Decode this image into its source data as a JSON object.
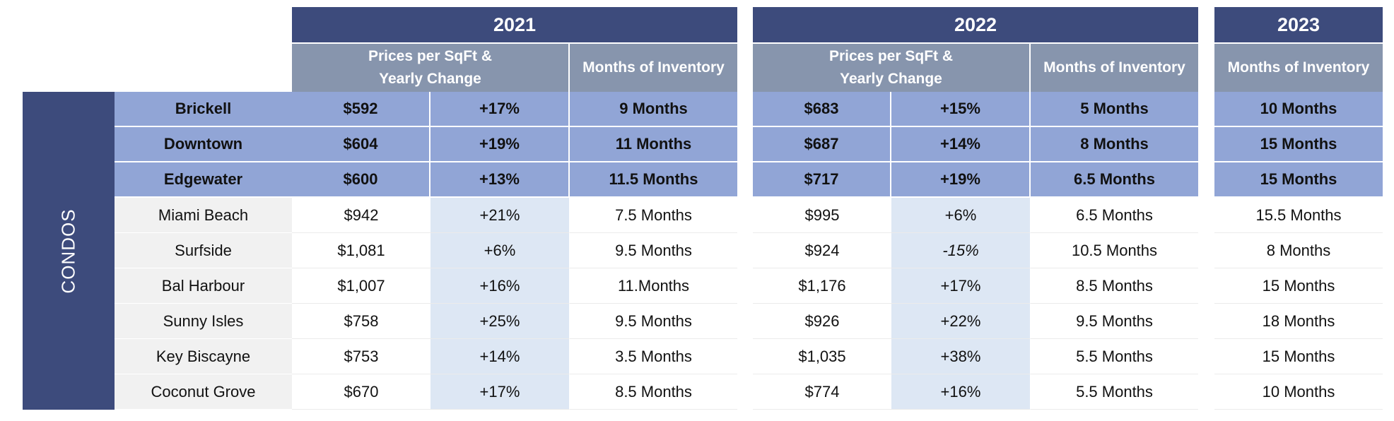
{
  "side_label": "CONDOS",
  "years": [
    "2021",
    "2022",
    "2023"
  ],
  "headers": {
    "price_line1": "Prices per SqFt &",
    "price_line2": "Yearly Change",
    "inventory": "Months of Inventory"
  },
  "rows": [
    {
      "name": "Brickell",
      "p21": "$592",
      "c21": "+17%",
      "m21": "9 Months",
      "p22": "$683",
      "c22": "+15%",
      "m22": "5 Months",
      "m23": "10 Months"
    },
    {
      "name": "Downtown",
      "p21": "$604",
      "c21": "+19%",
      "m21": "11 Months",
      "p22": "$687",
      "c22": "+14%",
      "m22": "8 Months",
      "m23": "15 Months"
    },
    {
      "name": "Edgewater",
      "p21": "$600",
      "c21": "+13%",
      "m21": "11.5 Months",
      "p22": "$717",
      "c22": "+19%",
      "m22": "6.5 Months",
      "m23": "15 Months"
    },
    {
      "name": "Miami Beach",
      "p21": "$942",
      "c21": "+21%",
      "m21": "7.5 Months",
      "p22": "$995",
      "c22": "+6%",
      "m22": "6.5 Months",
      "m23": "15.5 Months"
    },
    {
      "name": "Surfside",
      "p21": "$1,081",
      "c21": "+6%",
      "m21": "9.5 Months",
      "p22": "$924",
      "c22": "-15%",
      "m22": "10.5 Months",
      "m23": "8 Months"
    },
    {
      "name": "Bal Harbour",
      "p21": "$1,007",
      "c21": "+16%",
      "m21": "11.Months",
      "p22": "$1,176",
      "c22": "+17%",
      "m22": "8.5 Months",
      "m23": "15 Months"
    },
    {
      "name": "Sunny Isles",
      "p21": "$758",
      "c21": "+25%",
      "m21": "9.5 Months",
      "p22": "$926",
      "c22": "+22%",
      "m22": "9.5 Months",
      "m23": "18 Months"
    },
    {
      "name": "Key Biscayne",
      "p21": "$753",
      "c21": "+14%",
      "m21": "3.5 Months",
      "p22": "$1,035",
      "c22": "+38%",
      "m22": "5.5 Months",
      "m23": "15 Months"
    },
    {
      "name": "Coconut Grove",
      "p21": "$670",
      "c21": "+17%",
      "m21": "8.5 Months",
      "p22": "$774",
      "c22": "+16%",
      "m22": "5.5 Months",
      "m23": "10 Months"
    }
  ]
}
